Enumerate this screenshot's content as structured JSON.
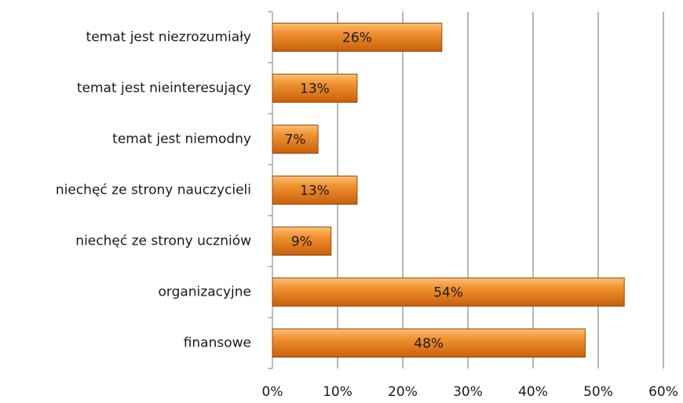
{
  "chart_data": {
    "type": "hbar",
    "categories": [
      "temat jest niezrozumiały",
      "temat jest nieinteresujący",
      "temat jest niemodny",
      "niechęć ze strony nauczycieli",
      "niechęć ze strony uczniów",
      "organizacyjne",
      "finansowe"
    ],
    "values": [
      26,
      13,
      7,
      13,
      9,
      54,
      48
    ],
    "value_labels": [
      "26%",
      "13%",
      "7%",
      "13%",
      "9%",
      "54%",
      "48%"
    ],
    "color": "#ee8a2a",
    "xlim": [
      0,
      60
    ],
    "xticks": [
      {
        "value": 0,
        "label": "0%"
      },
      {
        "value": 10,
        "label": "10%"
      },
      {
        "value": 20,
        "label": "20%"
      },
      {
        "value": 30,
        "label": "30%"
      },
      {
        "value": 40,
        "label": "40%"
      },
      {
        "value": 50,
        "label": "50%"
      },
      {
        "value": 60,
        "label": "60%"
      }
    ],
    "grid": true
  }
}
